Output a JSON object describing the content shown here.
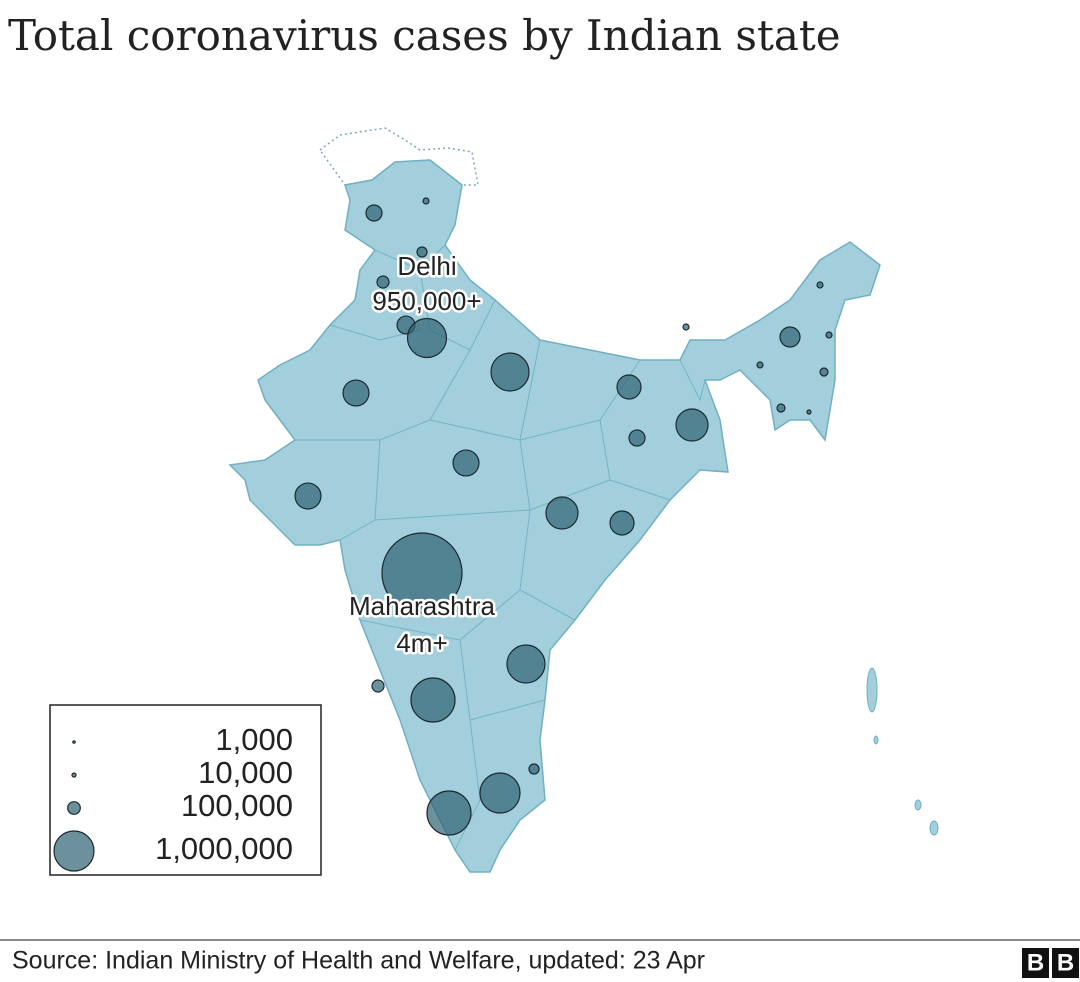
{
  "chart_data": {
    "type": "bubble-map",
    "title": "Total coronavirus cases by Indian state",
    "values": [
      160000,
      22500,
      62500,
      90000,
      200000,
      950000,
      900000,
      420000,
      360000,
      640000,
      160000,
      420000,
      420000,
      640000,
      360000,
      4000000,
      900000,
      90000,
      1210000,
      62500,
      1000000,
      1210000,
      250000,
      22500,
      22500,
      22500,
      40000,
      22500,
      40000,
      10000
    ],
    "color": "#2f6272",
    "annotations": [
      {
        "name": "Delhi",
        "label": "950,000+",
        "value": 950000
      },
      {
        "name": "Maharashtra",
        "label": "4m+",
        "value": 4000000
      }
    ],
    "legend": {
      "sizes": [
        {
          "value": 1000,
          "label": "1,000"
        },
        {
          "value": 10000,
          "label": "10,000"
        },
        {
          "value": 100000,
          "label": "100,000"
        },
        {
          "value": 1000000,
          "label": "1,000,000"
        }
      ]
    },
    "source": "Source: Indian Ministry of Health and Welfare, updated: 23 Apr",
    "logo": [
      "B",
      "B"
    ]
  }
}
